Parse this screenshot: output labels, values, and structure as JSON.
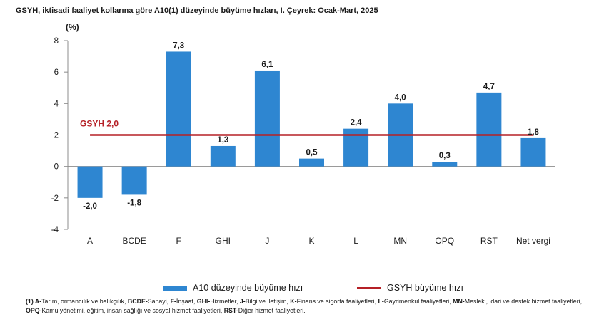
{
  "chart_data": {
    "type": "bar",
    "title": "GSYH, iktisadi faaliyet kollarına göre A10(1) düzeyinde büyüme hızları, I. Çeyrek: Ocak-Mart, 2025",
    "ylabel": "(%)",
    "xlabel": "",
    "categories": [
      "A",
      "BCDE",
      "F",
      "GHI",
      "J",
      "K",
      "L",
      "MN",
      "OPQ",
      "RST",
      "Net vergi"
    ],
    "series": [
      {
        "name": "A10 düzeyinde büyüme hızı",
        "values": [
          -2.0,
          -1.8,
          7.3,
          1.3,
          6.1,
          0.5,
          2.4,
          4.0,
          0.3,
          4.7,
          1.8
        ],
        "labels": [
          "-2,0",
          "-1,8",
          "7,3",
          "1,3",
          "6,1",
          "0,5",
          "2,4",
          "4,0",
          "0,3",
          "4,7",
          "1,8"
        ],
        "color": "#2e86d1"
      }
    ],
    "reference_line": {
      "name": "GSYH büyüme hızı",
      "value": 2.0,
      "label": "GSYH 2,0",
      "color": "#b52026"
    },
    "ylim": [
      -4,
      8
    ],
    "yticks": [
      -4,
      -2,
      0,
      2,
      4,
      6,
      8
    ],
    "grid": false,
    "legend_position": "bottom"
  },
  "footnote": [
    {
      "bold": "(1) A-",
      "text": "Tarım, ormancılık ve balıkçılık, "
    },
    {
      "bold": "BCDE-",
      "text": "Sanayi, "
    },
    {
      "bold": "F-",
      "text": "İnşaat, "
    },
    {
      "bold": "GHI-",
      "text": "Hizmetler, "
    },
    {
      "bold": "J-",
      "text": "Bilgi ve iletişim, "
    },
    {
      "bold": "K-",
      "text": "Finans ve sigorta faaliyetleri, "
    },
    {
      "bold": "L-",
      "text": "Gayrimenkul faaliyetleri, "
    },
    {
      "bold": "MN-",
      "text": "Mesleki, idari ve destek hizmet faaliyetleri, "
    },
    {
      "bold": "OPQ-",
      "text": "Kamu yönetimi, eğitim, insan sağlığı ve sosyal hizmet faaliyetleri, "
    },
    {
      "bold": "RST-",
      "text": "Diğer hizmet faaliyetleri."
    }
  ]
}
